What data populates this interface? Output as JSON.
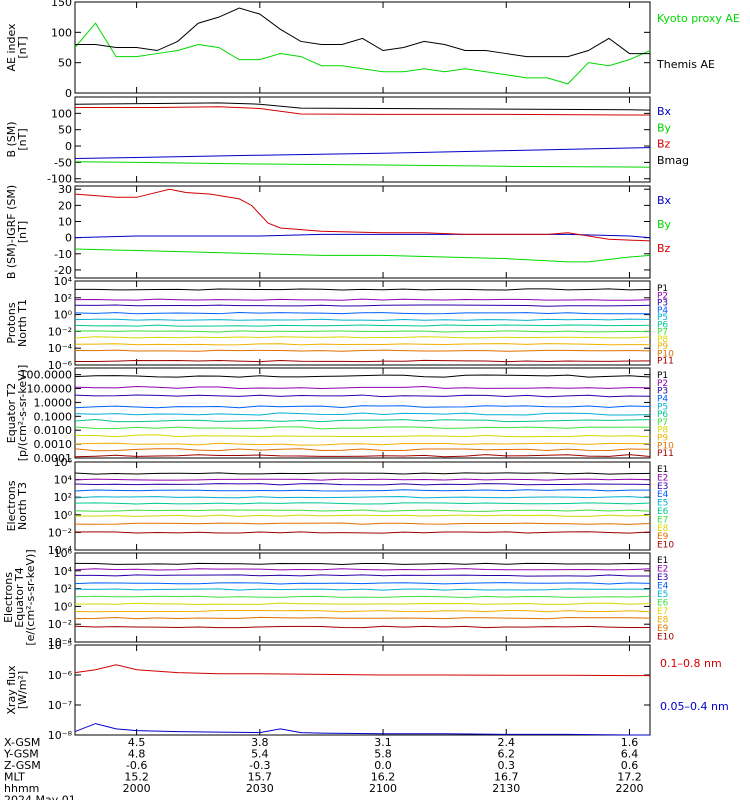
{
  "colors": {
    "black": "#000000",
    "green": "#00d800",
    "red": "#d00000",
    "blue": "#0000c8",
    "purple": "#9000b0",
    "navy": "#2a00a8",
    "brightblue": "#0060ff",
    "cyan": "#00b0d0",
    "aqua": "#00e0e0",
    "teal": "#00c890",
    "lime": "#40e040",
    "yellow": "#d8d800",
    "gold": "#f0b000",
    "orange": "#e07000",
    "darkred": "#a00000",
    "maroon": "#7a0000"
  },
  "time_axis": {
    "start": "19:45",
    "end": "22:05",
    "ticks": [
      {
        "t": "20:00",
        "label": "2000"
      },
      {
        "t": "20:30",
        "label": "2030"
      },
      {
        "t": "21:00",
        "label": "2100"
      },
      {
        "t": "21:30",
        "label": "2130"
      },
      {
        "t": "22:00",
        "label": "2200"
      }
    ]
  },
  "footer": {
    "rows": [
      {
        "label": "X-GSM",
        "values": [
          "4.5",
          "3.8",
          "3.1",
          "2.4",
          "1.6"
        ]
      },
      {
        "label": "Y-GSM",
        "values": [
          "4.8",
          "5.4",
          "5.8",
          "6.2",
          "6.4"
        ]
      },
      {
        "label": "Z-GSM",
        "values": [
          "-0.6",
          "-0.3",
          "0.0",
          "0.3",
          "0.6"
        ]
      },
      {
        "label": "MLT",
        "values": [
          "15.2",
          "15.7",
          "16.2",
          "16.7",
          "17.2"
        ]
      },
      {
        "label": "hhmm",
        "values": [
          "2000",
          "2030",
          "2100",
          "2130",
          "2200"
        ]
      }
    ],
    "date": "2024 May 01"
  },
  "chart_data": [
    {
      "type": "line",
      "id": "ae",
      "ylabel": [
        "AE index",
        "[nT]"
      ],
      "ylim": [
        0,
        150
      ],
      "yticks": [
        0,
        50,
        100,
        150
      ],
      "ytick_labels": [
        "0",
        "50",
        "100",
        "150"
      ],
      "series": [
        {
          "name": "Kyoto proxy AE",
          "color": "green",
          "x": [
            "19:45",
            "19:50",
            "19:55",
            "20:00",
            "20:05",
            "20:10",
            "20:15",
            "20:20",
            "20:25",
            "20:30",
            "20:35",
            "20:40",
            "20:45",
            "20:50",
            "20:55",
            "21:00",
            "21:05",
            "21:10",
            "21:15",
            "21:20",
            "21:25",
            "21:30",
            "21:35",
            "21:40",
            "21:45",
            "21:50",
            "21:55",
            "22:00",
            "22:05"
          ],
          "y": [
            75,
            115,
            60,
            60,
            65,
            70,
            80,
            75,
            55,
            55,
            65,
            60,
            45,
            45,
            40,
            35,
            35,
            40,
            35,
            40,
            35,
            30,
            25,
            25,
            15,
            50,
            45,
            55,
            70
          ]
        },
        {
          "name": "Themis AE",
          "color": "black",
          "x": [
            "19:45",
            "19:50",
            "19:55",
            "20:00",
            "20:05",
            "20:10",
            "20:15",
            "20:20",
            "20:25",
            "20:30",
            "20:35",
            "20:40",
            "20:45",
            "20:50",
            "20:55",
            "21:00",
            "21:05",
            "21:10",
            "21:15",
            "21:20",
            "21:25",
            "21:30",
            "21:35",
            "21:40",
            "21:45",
            "21:50",
            "21:55",
            "22:00",
            "22:05"
          ],
          "y": [
            80,
            80,
            75,
            75,
            70,
            85,
            115,
            125,
            140,
            130,
            105,
            85,
            80,
            80,
            90,
            70,
            75,
            85,
            80,
            70,
            70,
            65,
            60,
            60,
            60,
            70,
            90,
            65,
            65
          ]
        }
      ]
    },
    {
      "type": "line",
      "id": "bsm",
      "ylabel": [
        "B (SM)",
        "[nT]"
      ],
      "ylim": [
        -110,
        150
      ],
      "yticks": [
        -100,
        -50,
        0,
        50,
        100
      ],
      "ytick_labels": [
        "-100",
        "-50",
        "0",
        "50",
        "100"
      ],
      "series": [
        {
          "name": "Bx",
          "color": "blue",
          "x": [
            "19:45",
            "20:00",
            "20:30",
            "21:00",
            "21:30",
            "22:00",
            "22:05"
          ],
          "y": [
            -38,
            -35,
            -28,
            -22,
            -14,
            -6,
            -5
          ]
        },
        {
          "name": "By",
          "color": "green",
          "x": [
            "19:45",
            "20:00",
            "20:30",
            "21:00",
            "21:30",
            "22:00",
            "22:05"
          ],
          "y": [
            -48,
            -50,
            -55,
            -58,
            -62,
            -64,
            -65
          ]
        },
        {
          "name": "Bz",
          "color": "red",
          "x": [
            "19:45",
            "20:05",
            "20:20",
            "20:30",
            "20:40",
            "21:00",
            "21:30",
            "22:00",
            "22:05"
          ],
          "y": [
            118,
            118,
            120,
            115,
            98,
            97,
            97,
            95,
            95
          ]
        },
        {
          "name": "Bmag",
          "color": "black",
          "x": [
            "19:45",
            "20:05",
            "20:20",
            "20:30",
            "20:40",
            "21:00",
            "21:30",
            "22:00",
            "22:05"
          ],
          "y": [
            128,
            130,
            132,
            128,
            116,
            115,
            113,
            111,
            110
          ]
        }
      ]
    },
    {
      "type": "line",
      "id": "bigrf",
      "ylabel": [
        "B (SM)-IGRF (SM)",
        "[nT]"
      ],
      "ylim": [
        -25,
        32
      ],
      "yticks": [
        -20,
        -10,
        0,
        10,
        20,
        30
      ],
      "ytick_labels": [
        "-20",
        "-10",
        "0",
        "10",
        "20",
        "30"
      ],
      "series": [
        {
          "name": "Bx",
          "color": "blue",
          "x": [
            "19:45",
            "20:00",
            "20:15",
            "20:30",
            "20:45",
            "21:00",
            "21:15",
            "21:30",
            "21:45",
            "22:00",
            "22:05"
          ],
          "y": [
            0,
            1,
            1,
            1,
            2,
            2,
            2,
            2,
            2,
            1,
            0
          ]
        },
        {
          "name": "By",
          "color": "green",
          "x": [
            "19:45",
            "20:00",
            "20:15",
            "20:30",
            "20:45",
            "21:00",
            "21:15",
            "21:30",
            "21:45",
            "21:50",
            "22:00",
            "22:05"
          ],
          "y": [
            -7,
            -8,
            -9,
            -10,
            -11,
            -11,
            -12,
            -13,
            -15,
            -15,
            -12,
            -11
          ]
        },
        {
          "name": "Bz",
          "color": "red",
          "x": [
            "19:45",
            "19:50",
            "19:55",
            "20:00",
            "20:08",
            "20:12",
            "20:18",
            "20:25",
            "20:28",
            "20:32",
            "20:35",
            "20:45",
            "21:00",
            "21:10",
            "21:20",
            "21:30",
            "21:40",
            "21:45",
            "21:55",
            "22:05"
          ],
          "y": [
            27,
            26,
            25,
            25,
            30,
            28,
            27,
            24,
            20,
            9,
            6,
            4,
            3,
            3,
            2,
            2,
            2,
            3,
            -1,
            -2
          ]
        }
      ]
    },
    {
      "type": "line",
      "id": "protons-north",
      "ylog": true,
      "ylabel": [
        "Protons",
        "North T1"
      ],
      "ylim": [
        1e-06,
        10000.0
      ],
      "ytick_labels": [
        "10⁻⁶",
        "10⁻⁴",
        "10⁻²",
        "10⁰",
        "10²",
        "10⁴"
      ],
      "series": [
        {
          "name": "P1",
          "color": "black",
          "y": [
            1000
          ]
        },
        {
          "name": "P2",
          "color": "purple",
          "y": [
            60
          ]
        },
        {
          "name": "P3",
          "color": "navy",
          "y": [
            12
          ]
        },
        {
          "name": "P4",
          "color": "brightblue",
          "y": [
            1.5
          ]
        },
        {
          "name": "P5",
          "color": "cyan",
          "y": [
            0.25
          ]
        },
        {
          "name": "P6",
          "color": "teal",
          "y": [
            0.05
          ]
        },
        {
          "name": "P7",
          "color": "lime",
          "y": [
            0.01
          ]
        },
        {
          "name": "P8",
          "color": "yellow",
          "y": [
            0.002
          ]
        },
        {
          "name": "P9",
          "color": "gold",
          "y": [
            0.0003
          ]
        },
        {
          "name": "P10",
          "color": "orange",
          "y": [
            5e-05
          ]
        },
        {
          "name": "P11",
          "color": "darkred",
          "y": [
            3e-06
          ]
        }
      ]
    },
    {
      "type": "line",
      "id": "protons-equator",
      "ylog": true,
      "ylabel": [
        "Equator T2",
        "[p/(cm²-s-sr-keV)]"
      ],
      "ylim": [
        0.0001,
        300
      ],
      "ytick_labels": [
        "0.0001",
        "0.0010",
        "0.0100",
        "0.1000",
        "1.0000",
        "10.0000",
        "100.0000"
      ],
      "series": [
        {
          "name": "P1",
          "color": "black",
          "y": [
            80
          ]
        },
        {
          "name": "P2",
          "color": "purple",
          "y": [
            12
          ]
        },
        {
          "name": "P3",
          "color": "navy",
          "y": [
            3
          ]
        },
        {
          "name": "P4",
          "color": "brightblue",
          "y": [
            0.5
          ]
        },
        {
          "name": "P5",
          "color": "cyan",
          "y": [
            0.15
          ]
        },
        {
          "name": "P6",
          "color": "teal",
          "y": [
            0.05
          ]
        },
        {
          "name": "P7",
          "color": "lime",
          "y": [
            0.015
          ]
        },
        {
          "name": "P8",
          "color": "yellow",
          "y": [
            0.004
          ]
        },
        {
          "name": "P9",
          "color": "gold",
          "y": [
            0.001
          ]
        },
        {
          "name": "P10",
          "color": "orange",
          "y": [
            0.0004
          ]
        },
        {
          "name": "P11",
          "color": "darkred",
          "y": [
            0.00015
          ]
        }
      ]
    },
    {
      "type": "line",
      "id": "electrons-north",
      "ylog": true,
      "ylabel": [
        "Electrons",
        "North T3"
      ],
      "ylim": [
        0.0001,
        1000000.0
      ],
      "ytick_labels": [
        "10⁻⁴",
        "10⁻²",
        "10⁰",
        "10²",
        "10⁴",
        "10⁶"
      ],
      "series": [
        {
          "name": "E1",
          "color": "black",
          "y": [
            50000
          ]
        },
        {
          "name": "E2",
          "color": "purple",
          "y": [
            10000
          ]
        },
        {
          "name": "E3",
          "color": "navy",
          "y": [
            3000
          ]
        },
        {
          "name": "E4",
          "color": "brightblue",
          "y": [
            600
          ]
        },
        {
          "name": "E5",
          "color": "cyan",
          "y": [
            100
          ]
        },
        {
          "name": "E6",
          "color": "teal",
          "y": [
            20
          ]
        },
        {
          "name": "E7",
          "color": "lime",
          "y": [
            3
          ]
        },
        {
          "name": "E8",
          "color": "yellow",
          "y": [
            0.8
          ]
        },
        {
          "name": "E9",
          "color": "orange",
          "y": [
            0.1
          ]
        },
        {
          "name": "E10",
          "color": "darkred",
          "y": [
            0.01
          ]
        }
      ]
    },
    {
      "type": "line",
      "id": "electrons-equator",
      "ylog": true,
      "ylabel": [
        "Electrons",
        "Equator T4",
        "[e/(cm²-s-sr-keV)]"
      ],
      "ylim": [
        0.0001,
        1000000.0
      ],
      "ytick_labels": [
        "10⁻⁴",
        "10⁻²",
        "10⁰",
        "10²",
        "10⁴",
        "10⁶"
      ],
      "series": [
        {
          "name": "E1",
          "color": "black",
          "y": [
            60000
          ]
        },
        {
          "name": "E2",
          "color": "purple",
          "y": [
            15000
          ]
        },
        {
          "name": "E3",
          "color": "navy",
          "y": [
            3000
          ]
        },
        {
          "name": "E4",
          "color": "brightblue",
          "y": [
            400
          ]
        },
        {
          "name": "E5",
          "color": "cyan",
          "y": [
            80
          ]
        },
        {
          "name": "E6",
          "color": "lime",
          "y": [
            12
          ]
        },
        {
          "name": "E7",
          "color": "yellow",
          "y": [
            2
          ]
        },
        {
          "name": "E8",
          "color": "gold",
          "y": [
            0.3
          ]
        },
        {
          "name": "E9",
          "color": "orange",
          "y": [
            0.05
          ]
        },
        {
          "name": "E10",
          "color": "darkred",
          "y": [
            0.005
          ]
        }
      ]
    },
    {
      "type": "line",
      "id": "xray",
      "ylog": true,
      "ylabel": [
        "Xray flux",
        "[W/m²]"
      ],
      "ylim": [
        1e-08,
        1e-05
      ],
      "ytick_labels": [
        "10⁻⁸",
        "10⁻⁷",
        "10⁻⁶",
        "10⁻⁵"
      ],
      "series": [
        {
          "name": "0.1–0.8 nm",
          "color": "red",
          "x": [
            "19:45",
            "19:50",
            "19:55",
            "20:00",
            "20:10",
            "20:20",
            "20:30",
            "20:45",
            "21:00",
            "21:15",
            "21:30",
            "21:45",
            "22:00",
            "22:05"
          ],
          "y": [
            1.2e-06,
            1.5e-06,
            2.2e-06,
            1.5e-06,
            1.2e-06,
            1.1e-06,
            1.1e-06,
            1.05e-06,
            1e-06,
            1e-06,
            9.8e-07,
            9.8e-07,
            9.5e-07,
            9.5e-07
          ]
        },
        {
          "name": "0.05–0.4 nm",
          "color": "blue",
          "x": [
            "19:45",
            "19:50",
            "19:55",
            "20:00",
            "20:10",
            "20:20",
            "20:30",
            "20:35",
            "20:40",
            "20:45",
            "21:00",
            "21:15",
            "21:30",
            "21:45",
            "22:00",
            "22:05"
          ],
          "y": [
            1.3e-08,
            2.4e-08,
            1.6e-08,
            1.4e-08,
            1.3e-08,
            1.25e-08,
            1.2e-08,
            1.6e-08,
            1.2e-08,
            1.15e-08,
            1.1e-08,
            1.1e-08,
            1.05e-08,
            1.05e-08,
            1e-08,
            1e-08
          ]
        }
      ]
    }
  ]
}
